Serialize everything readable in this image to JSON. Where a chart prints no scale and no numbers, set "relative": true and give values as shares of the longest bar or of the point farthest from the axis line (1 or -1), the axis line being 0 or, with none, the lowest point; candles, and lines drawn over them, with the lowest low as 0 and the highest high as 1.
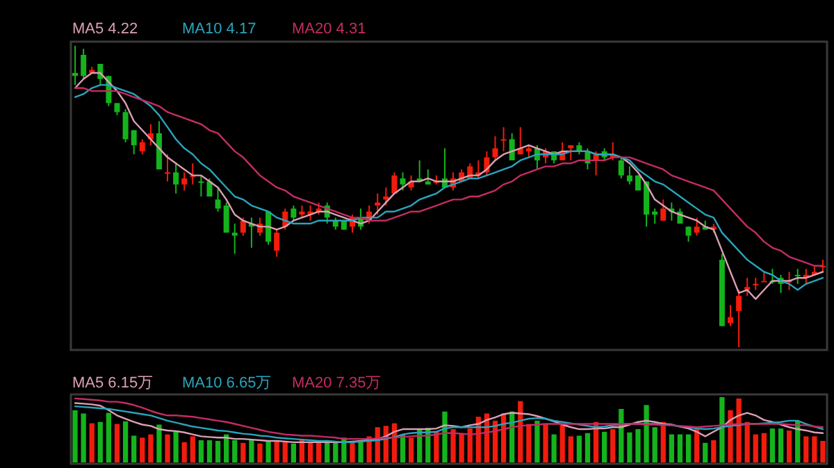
{
  "chart_data": [
    {
      "type": "candlestick",
      "relative": true,
      "legend": "top left",
      "categories": [
        null,
        null,
        null,
        null,
        null,
        null,
        null,
        null,
        null,
        null,
        null,
        null,
        null,
        null,
        null,
        null,
        null,
        null,
        null,
        null,
        null,
        null,
        null,
        null,
        null,
        null,
        null,
        null,
        null,
        null,
        null,
        null,
        null,
        null,
        null,
        null,
        null,
        null,
        null,
        null,
        null,
        null,
        null,
        null,
        null,
        null,
        null,
        null,
        null,
        null,
        null,
        null,
        null,
        null,
        null,
        null,
        null,
        null,
        null,
        null,
        null,
        null,
        null,
        null,
        null,
        null,
        null,
        null,
        null,
        null,
        null,
        null,
        null,
        null,
        null,
        null,
        null,
        null,
        null,
        null,
        null,
        null,
        null,
        null,
        null,
        null,
        null,
        null,
        null,
        null
      ],
      "ohlc": [
        [
          0.91,
          1.0,
          0.87,
          0.9
        ],
        [
          0.97,
          0.99,
          0.89,
          0.9
        ],
        [
          0.91,
          0.93,
          0.91,
          0.92
        ],
        [
          0.94,
          0.94,
          0.87,
          0.89
        ],
        [
          0.9,
          0.9,
          0.8,
          0.81
        ],
        [
          0.81,
          0.81,
          0.77,
          0.78
        ],
        [
          0.78,
          0.79,
          0.68,
          0.69
        ],
        [
          0.72,
          0.72,
          0.64,
          0.67
        ],
        [
          0.65,
          0.69,
          0.64,
          0.68
        ],
        [
          0.69,
          0.74,
          0.67,
          0.71
        ],
        [
          0.71,
          0.75,
          0.59,
          0.59
        ],
        [
          0.58,
          0.64,
          0.55,
          0.58
        ],
        [
          0.58,
          0.61,
          0.51,
          0.54
        ],
        [
          0.54,
          0.58,
          0.52,
          0.56
        ],
        [
          0.57,
          0.61,
          0.54,
          0.57
        ],
        [
          0.55,
          0.57,
          0.5,
          0.55
        ],
        [
          0.55,
          0.56,
          0.5,
          0.5
        ],
        [
          0.49,
          0.53,
          0.45,
          0.46
        ],
        [
          0.47,
          0.48,
          0.38,
          0.38
        ],
        [
          0.38,
          0.41,
          0.31,
          0.37
        ],
        [
          0.38,
          0.43,
          0.37,
          0.42
        ],
        [
          0.41,
          0.43,
          0.33,
          0.4
        ],
        [
          0.38,
          0.43,
          0.37,
          0.41
        ],
        [
          0.45,
          0.45,
          0.34,
          0.35
        ],
        [
          0.32,
          0.39,
          0.3,
          0.38
        ],
        [
          0.4,
          0.46,
          0.39,
          0.45
        ],
        [
          0.46,
          0.47,
          0.42,
          0.43
        ],
        [
          0.44,
          0.47,
          0.43,
          0.45
        ],
        [
          0.44,
          0.47,
          0.42,
          0.45
        ],
        [
          0.45,
          0.48,
          0.44,
          0.46
        ],
        [
          0.47,
          0.48,
          0.41,
          0.43
        ],
        [
          0.42,
          0.43,
          0.39,
          0.4
        ],
        [
          0.42,
          0.42,
          0.39,
          0.39
        ],
        [
          0.4,
          0.44,
          0.38,
          0.43
        ],
        [
          0.43,
          0.46,
          0.39,
          0.4
        ],
        [
          0.42,
          0.47,
          0.41,
          0.45
        ],
        [
          0.47,
          0.51,
          0.44,
          0.48
        ],
        [
          0.49,
          0.53,
          0.47,
          0.5
        ],
        [
          0.51,
          0.58,
          0.51,
          0.57
        ],
        [
          0.56,
          0.58,
          0.52,
          0.54
        ],
        [
          0.53,
          0.57,
          0.52,
          0.55
        ],
        [
          0.56,
          0.62,
          0.55,
          0.55
        ],
        [
          0.55,
          0.59,
          0.54,
          0.54
        ],
        [
          0.55,
          0.57,
          0.54,
          0.55
        ],
        [
          0.56,
          0.66,
          0.53,
          0.53
        ],
        [
          0.53,
          0.58,
          0.52,
          0.56
        ],
        [
          0.55,
          0.59,
          0.55,
          0.58
        ],
        [
          0.56,
          0.61,
          0.56,
          0.6
        ],
        [
          0.57,
          0.62,
          0.56,
          0.58
        ],
        [
          0.58,
          0.65,
          0.57,
          0.63
        ],
        [
          0.63,
          0.7,
          0.62,
          0.66
        ],
        [
          0.69,
          0.73,
          0.65,
          0.69
        ],
        [
          0.69,
          0.71,
          0.62,
          0.62
        ],
        [
          0.64,
          0.73,
          0.64,
          0.66
        ],
        [
          0.65,
          0.67,
          0.63,
          0.66
        ],
        [
          0.66,
          0.67,
          0.59,
          0.62
        ],
        [
          0.63,
          0.66,
          0.61,
          0.65
        ],
        [
          0.65,
          0.65,
          0.61,
          0.62
        ],
        [
          0.62,
          0.68,
          0.62,
          0.65
        ],
        [
          0.66,
          0.67,
          0.62,
          0.67
        ],
        [
          0.67,
          0.68,
          0.64,
          0.65
        ],
        [
          0.65,
          0.66,
          0.59,
          0.61
        ],
        [
          0.62,
          0.65,
          0.57,
          0.64
        ],
        [
          0.65,
          0.66,
          0.62,
          0.63
        ],
        [
          0.63,
          0.68,
          0.62,
          0.64
        ],
        [
          0.62,
          0.63,
          0.56,
          0.57
        ],
        [
          0.57,
          0.6,
          0.54,
          0.55
        ],
        [
          0.57,
          0.57,
          0.52,
          0.52
        ],
        [
          0.55,
          0.55,
          0.4,
          0.44
        ],
        [
          0.45,
          0.46,
          0.41,
          0.44
        ],
        [
          0.42,
          0.49,
          0.42,
          0.46
        ],
        [
          0.46,
          0.48,
          0.42,
          0.45
        ],
        [
          0.45,
          0.46,
          0.41,
          0.41
        ],
        [
          0.4,
          0.4,
          0.35,
          0.37
        ],
        [
          0.38,
          0.43,
          0.37,
          0.4
        ],
        [
          0.4,
          0.42,
          0.39,
          0.39
        ],
        [
          0.39,
          0.41,
          0.38,
          0.4
        ],
        [
          0.29,
          0.31,
          0.07,
          0.07
        ],
        [
          0.08,
          0.14,
          0.07,
          0.1
        ],
        [
          0.12,
          0.19,
          0.0,
          0.17
        ],
        [
          0.19,
          0.23,
          0.17,
          0.2
        ],
        [
          0.21,
          0.23,
          0.19,
          0.21
        ],
        [
          0.22,
          0.25,
          0.22,
          0.22
        ],
        [
          0.22,
          0.26,
          0.21,
          0.22
        ],
        [
          0.23,
          0.24,
          0.18,
          0.21
        ],
        [
          0.22,
          0.25,
          0.19,
          0.22
        ],
        [
          0.24,
          0.26,
          0.21,
          0.24
        ],
        [
          0.23,
          0.26,
          0.21,
          0.24
        ],
        [
          0.24,
          0.27,
          0.24,
          0.25
        ],
        [
          0.27,
          0.29,
          0.25,
          0.27
        ]
      ],
      "colors": [
        "#14b41c",
        "#14b41c",
        "#f21c0c",
        "#14b41c",
        "#14b41c",
        "#14b41c",
        "#14b41c",
        "#14b41c",
        "#f21c0c",
        "#f21c0c",
        "#14b41c",
        "#f21c0c",
        "#14b41c",
        "#f21c0c",
        "#f21c0c",
        "#14b41c",
        "#14b41c",
        "#14b41c",
        "#14b41c",
        "#14b41c",
        "#f21c0c",
        "#14b41c",
        "#f21c0c",
        "#14b41c",
        "#f21c0c",
        "#f21c0c",
        "#14b41c",
        "#f21c0c",
        "#f21c0c",
        "#f21c0c",
        "#14b41c",
        "#14b41c",
        "#14b41c",
        "#f21c0c",
        "#14b41c",
        "#f21c0c",
        "#f21c0c",
        "#f21c0c",
        "#f21c0c",
        "#14b41c",
        "#f21c0c",
        "#14b41c",
        "#14b41c",
        "#f21c0c",
        "#14b41c",
        "#f21c0c",
        "#f21c0c",
        "#f21c0c",
        "#f21c0c",
        "#f21c0c",
        "#f21c0c",
        "#f21c0c",
        "#14b41c",
        "#f21c0c",
        "#f21c0c",
        "#14b41c",
        "#f21c0c",
        "#14b41c",
        "#f21c0c",
        "#f21c0c",
        "#14b41c",
        "#14b41c",
        "#f21c0c",
        "#14b41c",
        "#f21c0c",
        "#14b41c",
        "#14b41c",
        "#14b41c",
        "#14b41c",
        "#14b41c",
        "#f21c0c",
        "#14b41c",
        "#14b41c",
        "#14b41c",
        "#f21c0c",
        "#14b41c",
        "#f21c0c",
        "#14b41c",
        "#f21c0c",
        "#f21c0c",
        "#f21c0c",
        "#f21c0c",
        "#f21c0c",
        "#14b41c",
        "#14b41c",
        "#f21c0c",
        "#14b41c",
        "#f21c0c",
        "#f21c0c",
        "#f21c0c"
      ],
      "series": [
        {
          "name": "MA5 4.22",
          "type": "line",
          "color": "#dca0b4",
          "values": [
            0.86,
            0.89,
            0.91,
            0.91,
            0.88,
            0.85,
            0.81,
            0.75,
            0.72,
            0.69,
            0.66,
            0.63,
            0.61,
            0.59,
            0.57,
            0.57,
            0.55,
            0.53,
            0.49,
            0.44,
            0.42,
            0.41,
            0.4,
            0.4,
            0.39,
            0.4,
            0.42,
            0.43,
            0.44,
            0.45,
            0.45,
            0.44,
            0.43,
            0.42,
            0.41,
            0.42,
            0.45,
            0.48,
            0.51,
            0.53,
            0.55,
            0.55,
            0.56,
            0.55,
            0.55,
            0.55,
            0.56,
            0.57,
            0.57,
            0.59,
            0.62,
            0.64,
            0.65,
            0.66,
            0.67,
            0.66,
            0.65,
            0.64,
            0.65,
            0.65,
            0.65,
            0.65,
            0.64,
            0.64,
            0.64,
            0.63,
            0.61,
            0.58,
            0.54,
            0.49,
            0.47,
            0.45,
            0.44,
            0.43,
            0.42,
            0.4,
            0.39,
            0.32,
            0.25,
            0.18,
            0.19,
            0.16,
            0.19,
            0.22,
            0.22,
            0.22,
            0.23,
            0.23,
            0.24,
            0.25
          ]
        },
        {
          "name": "MA10 4.17",
          "type": "line",
          "color": "#2aa4bc",
          "values": [
            0.83,
            0.84,
            0.86,
            0.87,
            0.87,
            0.86,
            0.85,
            0.84,
            0.82,
            0.8,
            0.77,
            0.73,
            0.69,
            0.66,
            0.64,
            0.61,
            0.59,
            0.56,
            0.53,
            0.5,
            0.49,
            0.47,
            0.46,
            0.45,
            0.43,
            0.42,
            0.41,
            0.41,
            0.41,
            0.42,
            0.42,
            0.42,
            0.42,
            0.42,
            0.43,
            0.43,
            0.43,
            0.45,
            0.45,
            0.46,
            0.47,
            0.49,
            0.5,
            0.51,
            0.53,
            0.54,
            0.55,
            0.56,
            0.56,
            0.57,
            0.58,
            0.59,
            0.6,
            0.62,
            0.63,
            0.64,
            0.64,
            0.64,
            0.64,
            0.65,
            0.65,
            0.65,
            0.64,
            0.64,
            0.64,
            0.63,
            0.62,
            0.59,
            0.57,
            0.55,
            0.54,
            0.52,
            0.5,
            0.48,
            0.46,
            0.44,
            0.43,
            0.38,
            0.35,
            0.32,
            0.29,
            0.27,
            0.25,
            0.24,
            0.22,
            0.21,
            0.19,
            0.21,
            0.22,
            0.23
          ]
        },
        {
          "name": "MA20 4.31",
          "type": "line",
          "color": "#c42c64",
          "values": [
            0.86,
            0.86,
            0.85,
            0.85,
            0.85,
            0.85,
            0.84,
            0.83,
            0.82,
            0.81,
            0.8,
            0.78,
            0.77,
            0.76,
            0.75,
            0.74,
            0.72,
            0.71,
            0.68,
            0.65,
            0.63,
            0.6,
            0.57,
            0.55,
            0.53,
            0.52,
            0.5,
            0.49,
            0.48,
            0.47,
            0.46,
            0.45,
            0.44,
            0.43,
            0.43,
            0.42,
            0.42,
            0.42,
            0.43,
            0.44,
            0.45,
            0.45,
            0.46,
            0.47,
            0.48,
            0.49,
            0.49,
            0.5,
            0.5,
            0.51,
            0.52,
            0.54,
            0.55,
            0.57,
            0.58,
            0.59,
            0.6,
            0.6,
            0.61,
            0.61,
            0.62,
            0.62,
            0.62,
            0.62,
            0.63,
            0.63,
            0.63,
            0.62,
            0.61,
            0.6,
            0.59,
            0.57,
            0.56,
            0.55,
            0.54,
            0.53,
            0.52,
            0.49,
            0.46,
            0.43,
            0.4,
            0.38,
            0.35,
            0.33,
            0.32,
            0.3,
            0.29,
            0.28,
            0.27,
            0.27
          ]
        }
      ]
    },
    {
      "type": "bar",
      "relative": true,
      "legend": "top left",
      "categories": [
        null,
        null,
        null,
        null,
        null,
        null,
        null,
        null,
        null,
        null,
        null,
        null,
        null,
        null,
        null,
        null,
        null,
        null,
        null,
        null,
        null,
        null,
        null,
        null,
        null,
        null,
        null,
        null,
        null,
        null,
        null,
        null,
        null,
        null,
        null,
        null,
        null,
        null,
        null,
        null,
        null,
        null,
        null,
        null,
        null,
        null,
        null,
        null,
        null,
        null,
        null,
        null,
        null,
        null,
        null,
        null,
        null,
        null,
        null,
        null,
        null,
        null,
        null,
        null,
        null,
        null,
        null,
        null,
        null,
        null,
        null,
        null,
        null,
        null,
        null,
        null,
        null,
        null,
        null,
        null,
        null,
        null,
        null,
        null,
        null,
        null,
        null,
        null,
        null,
        null
      ],
      "series": [
        {
          "type": "bar",
          "colors": [
            "#14b41c",
            "#14b41c",
            "#f21c0c",
            "#14b41c",
            "#14b41c",
            "#f21c0c",
            "#14b41c",
            "#14b41c",
            "#f21c0c",
            "#f21c0c",
            "#14b41c",
            "#f21c0c",
            "#14b41c",
            "#f21c0c",
            "#f21c0c",
            "#14b41c",
            "#14b41c",
            "#14b41c",
            "#14b41c",
            "#14b41c",
            "#f21c0c",
            "#14b41c",
            "#f21c0c",
            "#14b41c",
            "#f21c0c",
            "#f21c0c",
            "#14b41c",
            "#f21c0c",
            "#f21c0c",
            "#f21c0c",
            "#14b41c",
            "#14b41c",
            "#14b41c",
            "#f21c0c",
            "#14b41c",
            "#f21c0c",
            "#f21c0c",
            "#f21c0c",
            "#f21c0c",
            "#14b41c",
            "#f21c0c",
            "#14b41c",
            "#14b41c",
            "#f21c0c",
            "#14b41c",
            "#f21c0c",
            "#f21c0c",
            "#f21c0c",
            "#f21c0c",
            "#f21c0c",
            "#f21c0c",
            "#f21c0c",
            "#14b41c",
            "#f21c0c",
            "#f21c0c",
            "#14b41c",
            "#f21c0c",
            "#14b41c",
            "#f21c0c",
            "#f21c0c",
            "#14b41c",
            "#14b41c",
            "#f21c0c",
            "#14b41c",
            "#f21c0c",
            "#14b41c",
            "#14b41c",
            "#14b41c",
            "#14b41c",
            "#14b41c",
            "#f21c0c",
            "#14b41c",
            "#14b41c",
            "#14b41c",
            "#f21c0c",
            "#14b41c",
            "#f21c0c",
            "#14b41c",
            "#f21c0c",
            "#f21c0c",
            "#f21c0c",
            "#f21c0c",
            "#f21c0c",
            "#14b41c",
            "#14b41c",
            "#f21c0c",
            "#14b41c",
            "#f21c0c",
            "#f21c0c",
            "#f21c0c"
          ],
          "values": [
            0.8,
            0.75,
            0.6,
            0.62,
            0.76,
            0.59,
            0.63,
            0.41,
            0.38,
            0.43,
            0.58,
            0.43,
            0.47,
            0.31,
            0.4,
            0.34,
            0.34,
            0.33,
            0.43,
            0.34,
            0.3,
            0.34,
            0.29,
            0.33,
            0.33,
            0.31,
            0.29,
            0.36,
            0.31,
            0.31,
            0.3,
            0.31,
            0.38,
            0.31,
            0.33,
            0.4,
            0.54,
            0.56,
            0.6,
            0.43,
            0.38,
            0.52,
            0.53,
            0.47,
            0.78,
            0.51,
            0.45,
            0.52,
            0.7,
            0.75,
            0.64,
            0.75,
            0.78,
            0.94,
            0.59,
            0.64,
            0.59,
            0.43,
            0.58,
            0.4,
            0.41,
            0.45,
            0.62,
            0.47,
            0.51,
            0.82,
            0.46,
            0.51,
            0.88,
            0.54,
            0.62,
            0.43,
            0.43,
            0.43,
            0.51,
            0.3,
            0.34,
            1.0,
            0.8,
            0.98,
            0.62,
            0.43,
            0.45,
            0.52,
            0.52,
            0.49,
            0.63,
            0.4,
            0.4,
            0.33
          ]
        },
        {
          "name": "MA5 6.15万",
          "type": "line",
          "color": "#dca0b4",
          "values": [
            0.91,
            0.9,
            0.89,
            0.87,
            0.8,
            0.72,
            0.67,
            0.62,
            0.58,
            0.56,
            0.51,
            0.49,
            0.48,
            0.46,
            0.43,
            0.4,
            0.39,
            0.38,
            0.38,
            0.36,
            0.36,
            0.35,
            0.34,
            0.33,
            0.33,
            0.32,
            0.31,
            0.31,
            0.31,
            0.31,
            0.31,
            0.31,
            0.31,
            0.32,
            0.33,
            0.34,
            0.36,
            0.4,
            0.47,
            0.51,
            0.51,
            0.51,
            0.51,
            0.52,
            0.57,
            0.56,
            0.54,
            0.57,
            0.59,
            0.65,
            0.69,
            0.74,
            0.76,
            0.75,
            0.74,
            0.71,
            0.67,
            0.63,
            0.58,
            0.54,
            0.51,
            0.51,
            0.52,
            0.52,
            0.54,
            0.54,
            0.58,
            0.62,
            0.64,
            0.62,
            0.59,
            0.58,
            0.55,
            0.52,
            0.47,
            0.4,
            0.47,
            0.54,
            0.65,
            0.72,
            0.76,
            0.72,
            0.65,
            0.62,
            0.58,
            0.54,
            0.51,
            0.49,
            0.46,
            0.45
          ]
        },
        {
          "name": "MA10 6.65万",
          "type": "line",
          "color": "#2aa4bc",
          "values": [
            0.86,
            0.85,
            0.84,
            0.83,
            0.82,
            0.8,
            0.78,
            0.76,
            0.74,
            0.72,
            0.68,
            0.64,
            0.61,
            0.58,
            0.55,
            0.53,
            0.51,
            0.49,
            0.48,
            0.46,
            0.44,
            0.43,
            0.41,
            0.4,
            0.38,
            0.37,
            0.36,
            0.35,
            0.34,
            0.33,
            0.33,
            0.32,
            0.31,
            0.31,
            0.32,
            0.33,
            0.34,
            0.36,
            0.39,
            0.43,
            0.45,
            0.46,
            0.46,
            0.47,
            0.52,
            0.54,
            0.54,
            0.54,
            0.54,
            0.54,
            0.56,
            0.59,
            0.61,
            0.64,
            0.67,
            0.68,
            0.67,
            0.64,
            0.62,
            0.6,
            0.58,
            0.56,
            0.54,
            0.55,
            0.57,
            0.58,
            0.59,
            0.59,
            0.59,
            0.59,
            0.58,
            0.57,
            0.55,
            0.54,
            0.52,
            0.51,
            0.52,
            0.54,
            0.56,
            0.57,
            0.59,
            0.59,
            0.6,
            0.61,
            0.62,
            0.64,
            0.64,
            0.59,
            0.55,
            0.51
          ]
        },
        {
          "name": "MA20 7.35万",
          "type": "line",
          "color": "#c42c64",
          "values": [
            0.98,
            0.97,
            0.96,
            0.95,
            0.93,
            0.93,
            0.91,
            0.88,
            0.84,
            0.79,
            0.75,
            0.72,
            0.72,
            0.71,
            0.7,
            0.68,
            0.66,
            0.64,
            0.62,
            0.59,
            0.56,
            0.53,
            0.5,
            0.47,
            0.45,
            0.43,
            0.42,
            0.41,
            0.41,
            0.4,
            0.39,
            0.38,
            0.36,
            0.36,
            0.36,
            0.36,
            0.37,
            0.38,
            0.38,
            0.39,
            0.4,
            0.41,
            0.41,
            0.43,
            0.45,
            0.45,
            0.44,
            0.43,
            0.44,
            0.46,
            0.48,
            0.51,
            0.54,
            0.56,
            0.57,
            0.58,
            0.59,
            0.59,
            0.59,
            0.59,
            0.59,
            0.59,
            0.59,
            0.59,
            0.59,
            0.59,
            0.59,
            0.59,
            0.58,
            0.58,
            0.57,
            0.57,
            0.56,
            0.55,
            0.54,
            0.55,
            0.56,
            0.57,
            0.58,
            0.59,
            0.59,
            0.59,
            0.59,
            0.59,
            0.59,
            0.58,
            0.57,
            0.57,
            0.55,
            0.54
          ]
        }
      ]
    }
  ]
}
